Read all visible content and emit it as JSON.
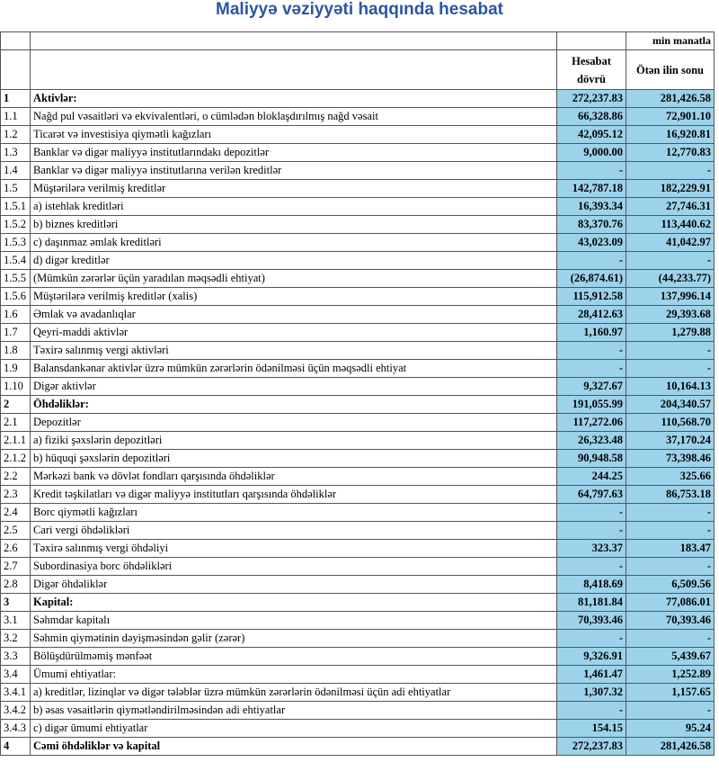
{
  "header": {
    "title": "Maliyyə vəziyyəti haqqında hesabat",
    "unit": "min manatla",
    "col1": "Hesabat dövrü",
    "col2": "Ötən ilin sonu"
  },
  "table": {
    "rows": [
      [
        "1",
        "Aktivlər:",
        "272,237.83",
        "281,426.58"
      ],
      [
        "1.1",
        "Nağd pul vəsaitləri və  ekvivalentləri, o cümlədən bloklaşdırılmış nağd vəsait",
        "66,328.86",
        "72,901.10"
      ],
      [
        "1.2",
        "Ticarət və investisiya qiymətli kağızları",
        "42,095.12",
        "16,920.81"
      ],
      [
        "1.3",
        "Banklar və digər maliyyə institutlarındakı depozitlər",
        "9,000.00",
        "12,770.83"
      ],
      [
        "1.4",
        "Banklar və digər maliyyə institutlarına verilən kreditlər",
        "-",
        "-"
      ],
      [
        "1.5",
        "Müştərilərə verilmiş kreditlər",
        "142,787.18",
        "182,229.91"
      ],
      [
        "1.5.1",
        "a) istehlak kreditləri",
        "16,393.34",
        "27,746.31"
      ],
      [
        "1.5.2",
        "b) biznes kreditləri",
        "83,370.76",
        "113,440.62"
      ],
      [
        "1.5.3",
        "c) daşınmaz əmlak kreditləri",
        "43,023.09",
        "41,042.97"
      ],
      [
        "1.5.4",
        "d) digər kreditlər",
        "-",
        "-"
      ],
      [
        "1.5.5",
        "(Mümkün zərərlər üçün yaradılan məqsədli ehtiyat)",
        "(26,874.61)",
        "(44,233.77)"
      ],
      [
        "1.5.6",
        "Müştərilərə verilmiş kreditlər (xalis)",
        "115,912.58",
        "137,996.14"
      ],
      [
        "1.6",
        "Əmlak və avadanlıqlar",
        "28,412.63",
        "29,393.68"
      ],
      [
        "1.7",
        "Qeyri-maddi aktivlər",
        "1,160.97",
        "1,279.88"
      ],
      [
        "1.8",
        "Təxirə salınmış vergi aktivləri",
        "-",
        "-"
      ],
      [
        "1.9",
        "Balansdankənar aktivlər üzrə mümkün zərərlərin ödənilməsi üçün məqsədli ehtiyat",
        "-",
        "-"
      ],
      [
        "1.10",
        "Digər aktivlər",
        "9,327.67",
        "10,164.13"
      ],
      [
        "2",
        "Öhdəliklər:",
        "191,055.99",
        "204,340.57"
      ],
      [
        "2.1",
        "Depozitlər",
        "117,272.06",
        "110,568.70"
      ],
      [
        "2.1.1",
        "a) fiziki şəxslərin depozitləri",
        "26,323.48",
        "37,170.24"
      ],
      [
        "2.1.2",
        "b) hüquqi şəxslərin depozitləri",
        "90,948.58",
        "73,398.46"
      ],
      [
        "2.2",
        "Mərkəzi bank və dövlət fondları qarşısında öhdəliklər",
        "244.25",
        "325.66"
      ],
      [
        "2.3",
        "Kredit təşkilatları və digər maliyyə institutları qarşısında öhdəliklər",
        "64,797.63",
        "86,753.18"
      ],
      [
        "2.4",
        "Borc qiymətli kağızları",
        "-",
        "-"
      ],
      [
        "2.5",
        "Cari vergi öhdəlikləri",
        "-",
        "-"
      ],
      [
        "2.6",
        "Təxirə salınmış vergi öhdəliyi",
        "323.37",
        "183.47"
      ],
      [
        "2.7",
        "Subordinasiya borc öhdəlikləri",
        "-",
        "-"
      ],
      [
        "2.8",
        "Digər öhdəliklər",
        "8,418.69",
        "6,509.56"
      ],
      [
        "3",
        "Kapital:",
        "81,181.84",
        "77,086.01"
      ],
      [
        "3.1",
        "Səhmdar kapitalı",
        "70,393.46",
        "70,393.46"
      ],
      [
        "3.2",
        "Səhmin qiymətinin dəyişməsindən gəlir (zərər)",
        "-",
        "-"
      ],
      [
        "3.3",
        "Bölüşdürülməmiş mənfəət",
        "9,326.91",
        "5,439.67"
      ],
      [
        "3.4",
        "Ümumi ehtiyatlar:",
        "1,461.47",
        "1,252.89"
      ],
      [
        "3.4.1",
        "a) kreditlər, lizinqlər və digər tələblər üzrə mümkün zərərlərin ödənilməsi üçün adi ehtiyatlar",
        "1,307.32",
        "1,157.65"
      ],
      [
        "3.4.2",
        "b) əsas vəsaitlərin qiymətləndirilməsindən adi ehtiyatlar",
        "-",
        "-"
      ],
      [
        "3.4.3",
        "c) digər ümumi ehtiyatlar",
        "154.15",
        "95.24"
      ],
      [
        "4",
        "Cəmi öhdəliklər və kapital",
        "272,237.83",
        "281,426.58"
      ]
    ]
  }
}
